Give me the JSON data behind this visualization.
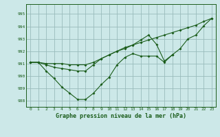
{
  "x": [
    0,
    1,
    2,
    3,
    4,
    5,
    6,
    7,
    8,
    9,
    10,
    11,
    12,
    13,
    14,
    15,
    16,
    17,
    18,
    19,
    20,
    21,
    22,
    23
  ],
  "line1_x": [
    0,
    1,
    2,
    3,
    4,
    5,
    6,
    7,
    8,
    9,
    10,
    11,
    12,
    13,
    14,
    15,
    16,
    17,
    18
  ],
  "line1_y": [
    991.1,
    991.1,
    990.4,
    989.8,
    989.1,
    988.6,
    988.1,
    988.1,
    988.6,
    989.3,
    989.9,
    990.9,
    991.5,
    991.8,
    991.6,
    991.6,
    991.6,
    991.1,
    991.7
  ],
  "line2_x": [
    0,
    1,
    2,
    3,
    4,
    5,
    6,
    7,
    8,
    9,
    10,
    11,
    12,
    13,
    14,
    15,
    16,
    17,
    18,
    19,
    20,
    21,
    22,
    23
  ],
  "line2_y": [
    991.1,
    991.1,
    991.0,
    991.0,
    991.0,
    990.9,
    990.9,
    990.9,
    991.1,
    991.4,
    991.7,
    992.0,
    992.2,
    992.5,
    992.7,
    992.9,
    993.1,
    993.3,
    993.5,
    993.7,
    993.9,
    994.1,
    994.4,
    994.65
  ],
  "line3_x": [
    0,
    1,
    2,
    3,
    4,
    5,
    6,
    7,
    8,
    9,
    10,
    11,
    12,
    13,
    14,
    15,
    16,
    17,
    18,
    19,
    20,
    21,
    22,
    23
  ],
  "line3_y": [
    991.1,
    991.1,
    990.9,
    990.7,
    990.6,
    990.5,
    990.4,
    990.4,
    990.9,
    991.4,
    991.7,
    992.0,
    992.3,
    992.5,
    992.9,
    993.3,
    992.55,
    991.2,
    991.7,
    992.2,
    993.0,
    993.3,
    994.05,
    994.65
  ],
  "bg_color": "#cce8e8",
  "line_color": "#1a5c1a",
  "grid_color": "#99bbbb",
  "title": "Graphe pression niveau de la mer (hPa)",
  "ylim_min": 987.5,
  "ylim_max": 995.8,
  "yticks": [
    988,
    989,
    990,
    991,
    992,
    993,
    994,
    995
  ],
  "xticks": [
    0,
    1,
    2,
    3,
    4,
    5,
    6,
    7,
    8,
    9,
    10,
    11,
    12,
    13,
    14,
    15,
    16,
    17,
    18,
    19,
    20,
    21,
    22,
    23
  ]
}
